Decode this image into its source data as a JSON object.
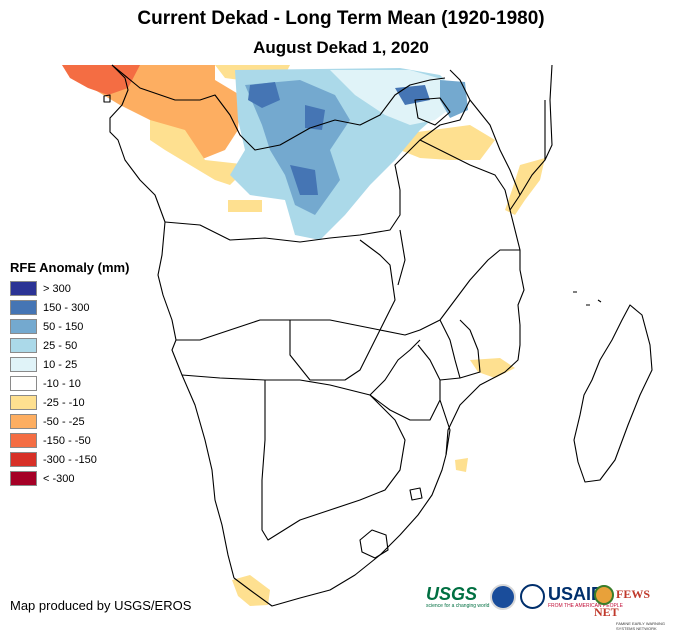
{
  "map": {
    "title": "Current Dekad - Long Term Mean (1920-1980)",
    "subtitle": "August Dekad 1, 2020",
    "credit": "Map produced by USGS/EROS"
  },
  "legend": {
    "title": "RFE Anomaly (mm)",
    "items": [
      {
        "label": "> 300",
        "color": "#2b3395"
      },
      {
        "label": "150 - 300",
        "color": "#4575b4"
      },
      {
        "label": "50 - 150",
        "color": "#74a9cf"
      },
      {
        "label": "25 - 50",
        "color": "#abd9e9"
      },
      {
        "label": "10 - 25",
        "color": "#e0f3f8"
      },
      {
        "label": "-10 - 10",
        "color": "#ffffff"
      },
      {
        "label": "-25 - -10",
        "color": "#fee090"
      },
      {
        "label": "-50 - -25",
        "color": "#fdae61"
      },
      {
        "label": "-150 - -50",
        "color": "#f46d43"
      },
      {
        "label": "-300 - -150",
        "color": "#d73027"
      },
      {
        "label": "< -300",
        "color": "#a50026"
      }
    ]
  },
  "logos": {
    "usgs": "USGS",
    "usgs_tag": "science for a changing world",
    "noaa": "noaa-emblem",
    "usaid": "USAID",
    "usaid_tag": "FROM THE AMERICAN PEOPLE",
    "fews": "FEWS NET",
    "fews_tag": "FAMINE EARLY WARNING SYSTEMS NETWORK"
  }
}
